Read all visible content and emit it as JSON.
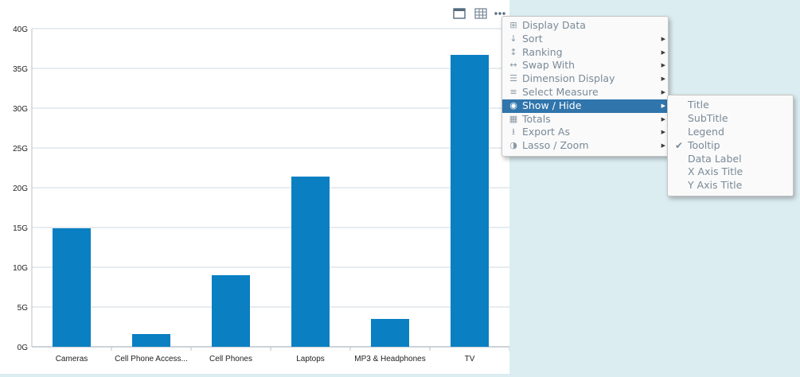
{
  "toolbar": {
    "icons": [
      "window-icon",
      "table-icon",
      "more-icon"
    ]
  },
  "chart_data": {
    "type": "bar",
    "categories": [
      "Cameras",
      "Cell Phone Access...",
      "Cell Phones",
      "Laptops",
      "MP3 & Headphones",
      "TV"
    ],
    "values": [
      14.9,
      1.6,
      9.0,
      21.4,
      3.5,
      36.7
    ],
    "series_color": "#0a7fc2",
    "y_ticks": [
      "0G",
      "5G",
      "10G",
      "15G",
      "20G",
      "25G",
      "30G",
      "35G",
      "40G"
    ],
    "ylim": [
      0,
      40
    ],
    "grid": true,
    "title": "",
    "xlabel": "",
    "ylabel": ""
  },
  "menu": {
    "items": [
      {
        "label": "Display Data",
        "icon": "grid-icon",
        "submenu": false
      },
      {
        "label": "Sort",
        "icon": "sort-icon",
        "submenu": true
      },
      {
        "label": "Ranking",
        "icon": "ranking-icon",
        "submenu": true
      },
      {
        "label": "Swap With",
        "icon": "swap-icon",
        "submenu": true
      },
      {
        "label": "Dimension Display",
        "icon": "list-icon",
        "submenu": true
      },
      {
        "label": "Select Measure",
        "icon": "menu-lines-icon",
        "submenu": true
      },
      {
        "label": "Show / Hide",
        "icon": "eye-icon",
        "submenu": true,
        "active": true
      },
      {
        "label": "Totals",
        "icon": "totals-icon",
        "submenu": true
      },
      {
        "label": "Export As",
        "icon": "download-icon",
        "submenu": true
      },
      {
        "label": "Lasso / Zoom",
        "icon": "contrast-icon",
        "submenu": true
      }
    ],
    "active_color": "#3075ac"
  },
  "submenu": {
    "items": [
      {
        "label": "Title",
        "checked": false
      },
      {
        "label": "SubTitle",
        "checked": false
      },
      {
        "label": "Legend",
        "checked": false
      },
      {
        "label": "Tooltip",
        "checked": true
      },
      {
        "label": "Data Label",
        "checked": false
      },
      {
        "label": "X Axis Title",
        "checked": false
      },
      {
        "label": "Y Axis Title",
        "checked": false
      }
    ]
  }
}
